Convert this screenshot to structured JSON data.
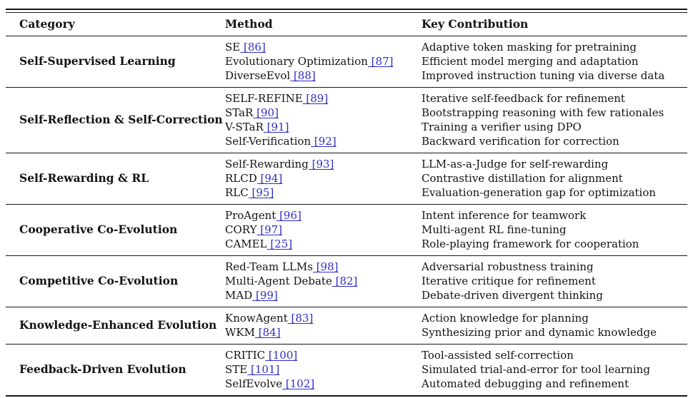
{
  "colors": {
    "link": "#2e2ecb",
    "rule": "#161616",
    "text": "#131313"
  },
  "table": {
    "headers": [
      "Category",
      "Method",
      "Key Contribution"
    ],
    "rows": [
      {
        "category": "Self-Supervised Learning",
        "methods": [
          {
            "name": "SE",
            "cite": "[86]",
            "contribution": "Adaptive token masking for pretraining"
          },
          {
            "name": "Evolutionary Optimization",
            "cite": "[87]",
            "contribution": "Efficient model merging and adaptation"
          },
          {
            "name": "DiverseEvol",
            "cite": "[88]",
            "contribution": "Improved instruction tuning via diverse data"
          }
        ]
      },
      {
        "category": "Self-Reflection & Self-Correction",
        "methods": [
          {
            "name": "SELF-REFINE",
            "cite": "[89]",
            "contribution": "Iterative self-feedback for refinement"
          },
          {
            "name": "STaR",
            "cite": "[90]",
            "contribution": "Bootstrapping reasoning with few rationales"
          },
          {
            "name": "V-STaR",
            "cite": "[91]",
            "contribution": "Training a verifier using DPO"
          },
          {
            "name": "Self-Verification",
            "cite": "[92]",
            "contribution": "Backward verification for correction"
          }
        ]
      },
      {
        "category": "Self-Rewarding & RL",
        "methods": [
          {
            "name": "Self-Rewarding",
            "cite": "[93]",
            "contribution": "LLM-as-a-Judge for self-rewarding"
          },
          {
            "name": "RLCD",
            "cite": "[94]",
            "contribution": "Contrastive distillation for alignment"
          },
          {
            "name": "RLC",
            "cite": "[95]",
            "contribution": "Evaluation-generation gap for optimization"
          }
        ]
      },
      {
        "category": "Cooperative Co-Evolution",
        "methods": [
          {
            "name": "ProAgent",
            "cite": "[96]",
            "contribution": "Intent inference for teamwork"
          },
          {
            "name": "CORY",
            "cite": "[97]",
            "contribution": "Multi-agent RL fine-tuning"
          },
          {
            "name": "CAMEL",
            "cite": "[25]",
            "contribution": "Role-playing framework for cooperation"
          }
        ]
      },
      {
        "category": "Competitive Co-Evolution",
        "methods": [
          {
            "name": "Red-Team LLMs",
            "cite": "[98]",
            "contribution": "Adversarial robustness training"
          },
          {
            "name": "Multi-Agent Debate",
            "cite": "[82]",
            "contribution": "Iterative critique for refinement"
          },
          {
            "name": "MAD",
            "cite": "[99]",
            "contribution": "Debate-driven divergent thinking"
          }
        ]
      },
      {
        "category": "Knowledge-Enhanced Evolution",
        "methods": [
          {
            "name": "KnowAgent",
            "cite": "[83]",
            "contribution": "Action knowledge for planning"
          },
          {
            "name": "WKM",
            "cite": "[84]",
            "contribution": "Synthesizing prior and dynamic knowledge"
          }
        ]
      },
      {
        "category": "Feedback-Driven Evolution",
        "methods": [
          {
            "name": "CRITIC",
            "cite": "[100]",
            "contribution": "Tool-assisted self-correction"
          },
          {
            "name": "STE",
            "cite": "[101]",
            "contribution": "Simulated trial-and-error for tool learning"
          },
          {
            "name": "SelfEvolve",
            "cite": "[102]",
            "contribution": "Automated debugging and refinement"
          }
        ]
      }
    ]
  }
}
